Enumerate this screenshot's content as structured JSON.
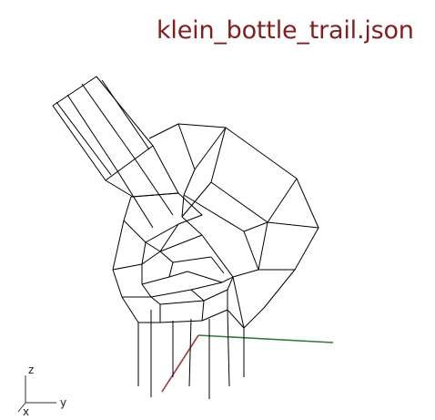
{
  "viewer": {
    "title": "klein_bottle_trail.json",
    "title_color": "#8b1a1a"
  },
  "axes_widget": {
    "labels": {
      "z": "z",
      "y": "y",
      "x": "x"
    },
    "color": "#333333"
  },
  "world_axes": {
    "x_color": "#a83232",
    "y_color": "#2e7d32"
  },
  "model": {
    "render_mode": "wireframe",
    "line_color": "#000000"
  }
}
